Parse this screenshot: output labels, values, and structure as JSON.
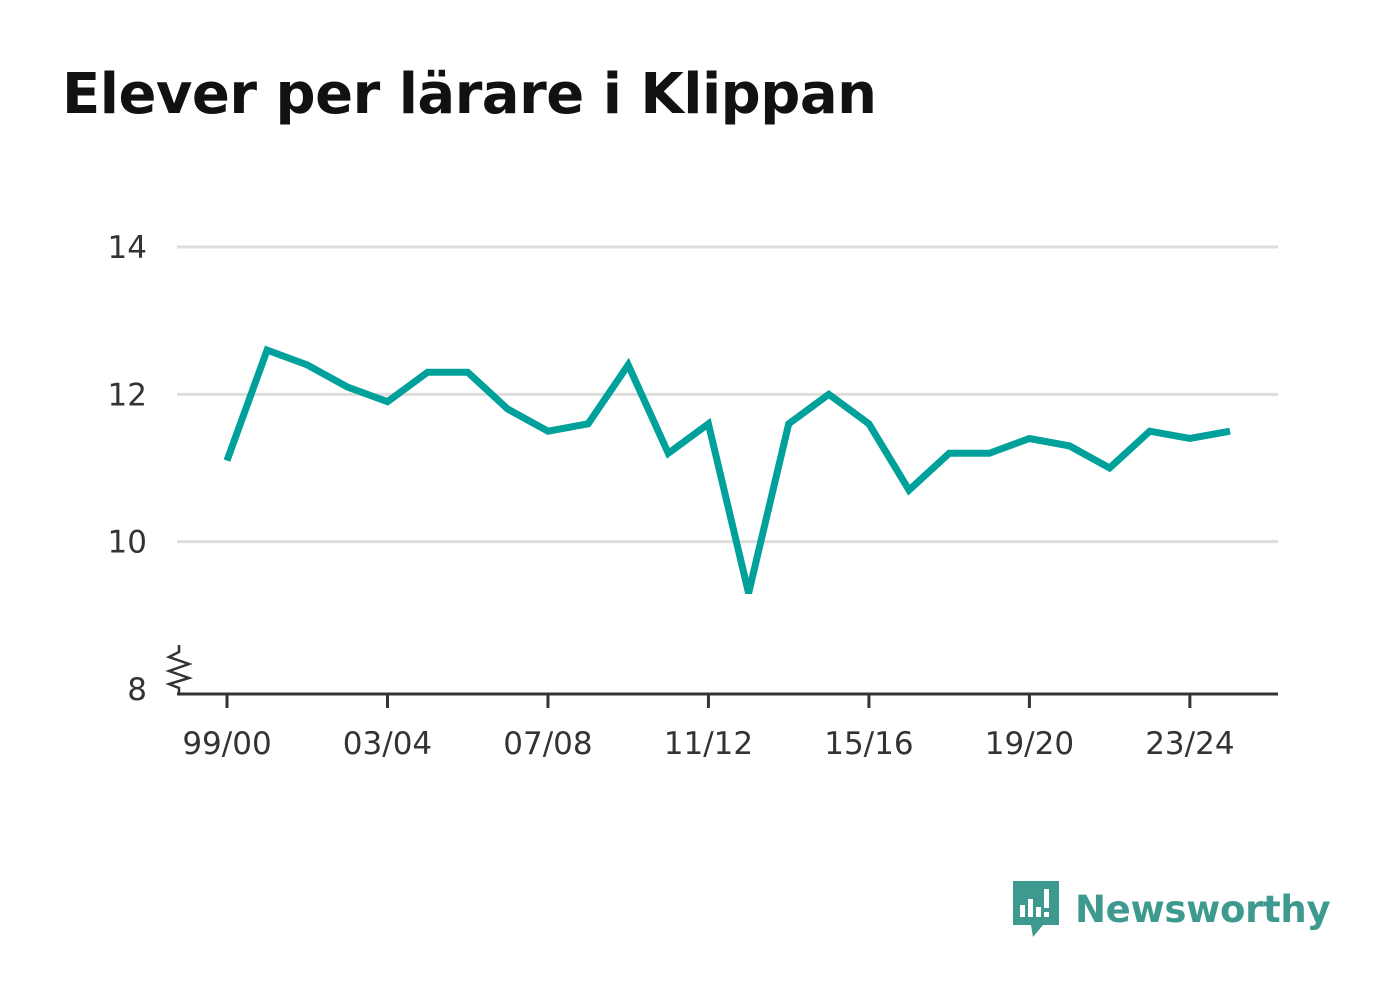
{
  "title": "Elever per lärare i Klippan",
  "brand": {
    "name": "Newsworthy",
    "color": "#3e9a8f"
  },
  "colors": {
    "line": "#00a19a",
    "grid": "#dddddd",
    "axis": "#333333"
  },
  "chart_data": {
    "type": "line",
    "title": "Elever per lärare i Klippan",
    "xlabel": "",
    "ylabel": "",
    "x": [
      "99/00",
      "00/01",
      "01/02",
      "02/03",
      "03/04",
      "04/05",
      "05/06",
      "06/07",
      "07/08",
      "08/09",
      "09/10",
      "10/11",
      "11/12",
      "12/13",
      "13/14",
      "14/15",
      "15/16",
      "16/17",
      "17/18",
      "18/19",
      "19/20",
      "20/21",
      "21/22",
      "22/23",
      "23/24",
      "24/25"
    ],
    "x_tick_labels": [
      "99/00",
      "03/04",
      "07/08",
      "11/12",
      "15/16",
      "19/20",
      "23/24"
    ],
    "y_ticks": [
      8,
      10,
      12,
      14
    ],
    "ylim": [
      8,
      14
    ],
    "y_axis_break": true,
    "grid": true,
    "series": [
      {
        "values": [
          11.1,
          12.6,
          12.4,
          12.1,
          11.9,
          12.3,
          12.3,
          11.8,
          11.5,
          11.6,
          12.4,
          11.2,
          11.6,
          9.3,
          11.6,
          12.0,
          11.6,
          10.7,
          11.2,
          11.2,
          11.4,
          11.3,
          11.0,
          11.5,
          11.4,
          11.5
        ]
      }
    ]
  }
}
